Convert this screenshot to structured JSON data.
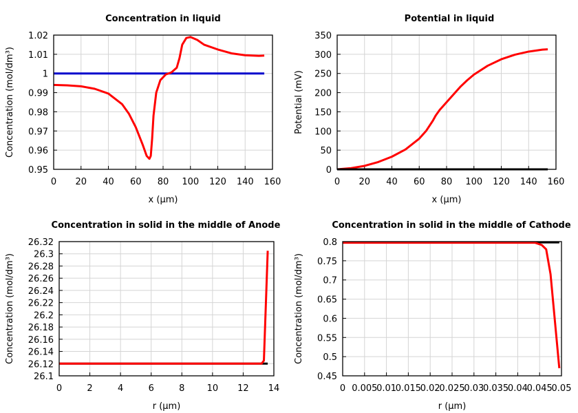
{
  "chart_data": [
    {
      "type": "line",
      "title": "Concentration in liquid",
      "xlabel": "x (µm)",
      "ylabel": "Concentration (mol/dm³)",
      "xlim": [
        0,
        160
      ],
      "ylim": [
        0.95,
        1.02
      ],
      "xticks": [
        "0",
        "20",
        "40",
        "60",
        "80",
        "100",
        "120",
        "140",
        "160"
      ],
      "yticks": [
        "0.95",
        "0.96",
        "0.97",
        "0.98",
        "0.99",
        "1",
        "1.01",
        "1.02"
      ],
      "grid": true,
      "series": [
        {
          "color": "#0000cc",
          "x": [
            0,
            154
          ],
          "y": [
            1,
            1
          ]
        },
        {
          "color": "#ff0000",
          "x": [
            0,
            10,
            20,
            30,
            40,
            50,
            55,
            60,
            65,
            68,
            70,
            71,
            72,
            73,
            75,
            78,
            82,
            86,
            90,
            92,
            94,
            97,
            100,
            105,
            110,
            120,
            130,
            140,
            150,
            154
          ],
          "y": [
            0.994,
            0.9938,
            0.9933,
            0.992,
            0.9895,
            0.984,
            0.979,
            0.972,
            0.963,
            0.957,
            0.9555,
            0.957,
            0.966,
            0.978,
            0.99,
            0.9965,
            0.9995,
            1.0005,
            1.003,
            1.008,
            1.015,
            1.0185,
            1.019,
            1.0175,
            1.015,
            1.0125,
            1.0105,
            1.0095,
            1.0092,
            1.0093
          ]
        }
      ]
    },
    {
      "type": "line",
      "title": "Potential in liquid",
      "xlabel": "x (µm)",
      "ylabel": "Potential (mV)",
      "xlim": [
        0,
        160
      ],
      "ylim": [
        0,
        350
      ],
      "xticks": [
        "0",
        "20",
        "40",
        "60",
        "80",
        "100",
        "120",
        "140",
        "160"
      ],
      "yticks": [
        "0",
        "50",
        "100",
        "150",
        "200",
        "250",
        "300",
        "350"
      ],
      "grid": true,
      "series": [
        {
          "color": "#ff0000",
          "x": [
            0,
            10,
            20,
            30,
            40,
            50,
            60,
            65,
            70,
            72,
            75,
            80,
            90,
            95,
            100,
            110,
            120,
            130,
            140,
            150,
            154
          ],
          "y": [
            0,
            3,
            9,
            19,
            33,
            52,
            80,
            100,
            127,
            140,
            155,
            175,
            215,
            232,
            247,
            270,
            287,
            299,
            307,
            312,
            313
          ]
        },
        {
          "color": "#000000",
          "x": [
            0,
            154
          ],
          "y": [
            0,
            0
          ]
        }
      ]
    },
    {
      "type": "line",
      "title": "Concentration in solid in the middle of Anode",
      "xlabel": "r (µm)",
      "ylabel": "Concentration (mol/dm³)",
      "xlim": [
        0,
        14
      ],
      "ylim": [
        26.1,
        26.32
      ],
      "xticks": [
        "0",
        "2",
        "4",
        "6",
        "8",
        "10",
        "12",
        "14"
      ],
      "yticks": [
        "26.1",
        "26.12",
        "26.14",
        "26.16",
        "26.18",
        "26.2",
        "26.22",
        "26.24",
        "26.26",
        "26.28",
        "26.3",
        "26.32"
      ],
      "grid": true,
      "series": [
        {
          "color": "#000000",
          "x": [
            0,
            13.6
          ],
          "y": [
            26.12,
            26.12
          ]
        },
        {
          "color": "#ff0000",
          "x": [
            0,
            13.2,
            13.35,
            13.6
          ],
          "y": [
            26.12,
            26.12,
            26.125,
            26.305
          ]
        }
      ]
    },
    {
      "type": "line",
      "title": "Concentration in solid in the middle of Cathode",
      "xlabel": "r (µm)",
      "ylabel": "Concentration (mol/dm³)",
      "xlim": [
        0,
        0.05
      ],
      "ylim": [
        0.45,
        0.8
      ],
      "xticks": [
        "0",
        "0.005",
        "0.01",
        "0.015",
        "0.02",
        "0.025",
        "0.03",
        "0.035",
        "0.04",
        "0.045",
        "0.05"
      ],
      "yticks": [
        "0.45",
        "0.5",
        "0.55",
        "0.6",
        "0.65",
        "0.7",
        "0.75",
        "0.8"
      ],
      "grid": true,
      "series": [
        {
          "color": "#000000",
          "x": [
            0,
            0.0495
          ],
          "y": [
            0.798,
            0.798
          ]
        },
        {
          "color": "#ff0000",
          "x": [
            0,
            0.044,
            0.0455,
            0.0465,
            0.0475,
            0.0495
          ],
          "y": [
            0.797,
            0.797,
            0.791,
            0.78,
            0.715,
            0.47
          ]
        }
      ]
    }
  ]
}
